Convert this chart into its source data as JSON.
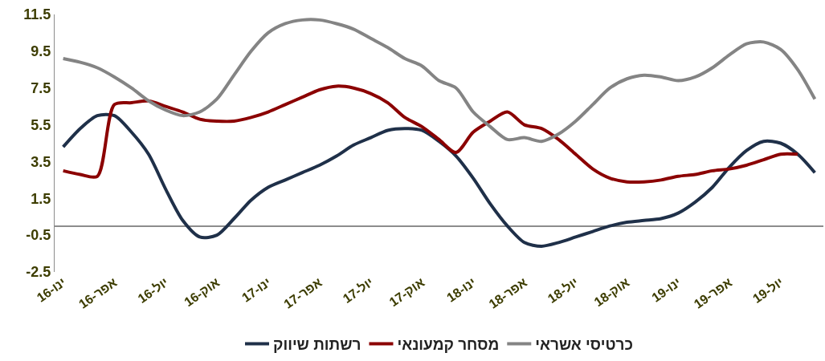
{
  "chart_data": {
    "type": "line",
    "categories": [
      "ינו-16",
      null,
      null,
      "אפר-16",
      null,
      null,
      "יול-16",
      null,
      null,
      "אוק-16",
      null,
      null,
      "ינו-17",
      null,
      null,
      "אפר-17",
      null,
      null,
      "יול-17",
      null,
      null,
      "אוק-17",
      null,
      null,
      "ינו-18",
      null,
      null,
      "אפר-18",
      null,
      null,
      "יול-18",
      null,
      null,
      "אוק-18",
      null,
      null,
      "ינו-19",
      null,
      null,
      "אפר-19",
      null,
      null,
      "יול-19",
      null,
      null
    ],
    "series": [
      {
        "name": "רשתות שיווק",
        "color": "#1f3049",
        "values": [
          4.3,
          5.3,
          6.0,
          6.0,
          5.1,
          3.9,
          2.0,
          0.3,
          -0.6,
          -0.5,
          0.4,
          1.4,
          2.1,
          2.5,
          2.9,
          3.3,
          3.8,
          4.4,
          4.8,
          5.2,
          5.3,
          5.2,
          4.6,
          3.8,
          2.6,
          1.2,
          0.0,
          -0.9,
          -1.1,
          -0.9,
          -0.6,
          -0.3,
          0.0,
          0.2,
          0.3,
          0.4,
          0.7,
          1.3,
          2.1,
          3.2,
          4.1,
          4.6,
          4.5,
          3.9,
          2.9
        ]
      },
      {
        "name": "מסחר קמעונאי",
        "color": "#8b0000",
        "values": [
          3.0,
          2.8,
          2.7,
          6.6,
          6.7,
          6.8,
          6.5,
          6.2,
          5.8,
          5.7,
          5.7,
          5.9,
          6.2,
          6.6,
          7.0,
          7.4,
          7.6,
          7.5,
          7.2,
          6.7,
          5.9,
          5.4,
          4.7,
          4.0,
          5.1,
          5.7,
          6.2,
          5.5,
          5.3,
          4.7,
          3.9,
          3.1,
          2.6,
          2.4,
          2.4,
          2.5,
          2.7,
          2.8,
          3.0,
          3.1,
          3.3,
          3.6,
          3.9,
          3.9,
          null
        ]
      },
      {
        "name": "כרטיסי אשראי",
        "color": "#848484",
        "values": [
          9.1,
          8.9,
          8.6,
          8.1,
          7.5,
          6.8,
          6.3,
          6.0,
          6.2,
          6.9,
          8.2,
          9.5,
          10.5,
          11.0,
          11.2,
          11.2,
          11.0,
          10.7,
          10.2,
          9.7,
          9.1,
          8.7,
          7.9,
          7.5,
          6.2,
          5.4,
          4.7,
          4.8,
          4.6,
          5.0,
          5.7,
          6.6,
          7.5,
          8.0,
          8.2,
          8.1,
          7.9,
          8.1,
          8.6,
          9.3,
          9.9,
          10.0,
          9.6,
          8.5,
          6.9
        ]
      }
    ],
    "ylim": [
      -2.5,
      11.5
    ],
    "yticks": [
      -2.5,
      -0.5,
      1.5,
      3.5,
      5.5,
      7.5,
      9.5,
      11.5
    ],
    "legend": "bottom",
    "marker": "none",
    "line_style": "solid"
  }
}
